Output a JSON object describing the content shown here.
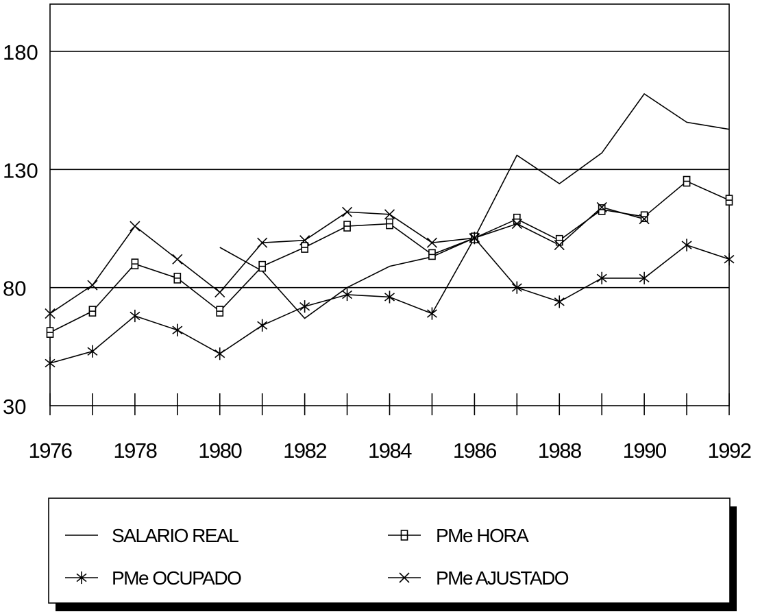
{
  "chart_data": {
    "type": "line",
    "title": "",
    "xlabel": "",
    "ylabel": "",
    "x": [
      1976,
      1977,
      1978,
      1979,
      1980,
      1981,
      1982,
      1983,
      1984,
      1985,
      1986,
      1987,
      1988,
      1989,
      1990,
      1991,
      1992
    ],
    "x_tick_labels": [
      "1976",
      "1978",
      "1980",
      "1982",
      "1984",
      "1986",
      "1988",
      "1990",
      "1992"
    ],
    "y_tick_labels": [
      "30",
      "80",
      "130",
      "180"
    ],
    "ylim": [
      30,
      200
    ],
    "xlim": [
      1976,
      1992
    ],
    "grid": "horizontal",
    "legend_position": "bottom",
    "series": [
      {
        "name": "SALARIO REAL",
        "marker": "none",
        "values": [
          null,
          null,
          null,
          null,
          97,
          87,
          67,
          80,
          89,
          93,
          101,
          136,
          124,
          137,
          162,
          150,
          147
        ]
      },
      {
        "name": "PMe HORA",
        "marker": "square",
        "values": [
          61,
          70,
          90,
          84,
          70,
          89,
          97,
          106,
          107,
          94,
          101,
          109,
          100,
          113,
          110,
          125,
          117
        ]
      },
      {
        "name": "PMe OCUPADO",
        "marker": "asterisk",
        "values": [
          48,
          53,
          68,
          62,
          52,
          64,
          72,
          77,
          76,
          69,
          101,
          80,
          74,
          84,
          84,
          98,
          92
        ]
      },
      {
        "name": "PMe AJUSTADO",
        "marker": "x",
        "values": [
          69,
          81,
          106,
          92,
          78,
          99,
          100,
          112,
          111,
          99,
          101,
          107,
          98,
          114,
          109,
          null,
          null
        ]
      }
    ]
  }
}
